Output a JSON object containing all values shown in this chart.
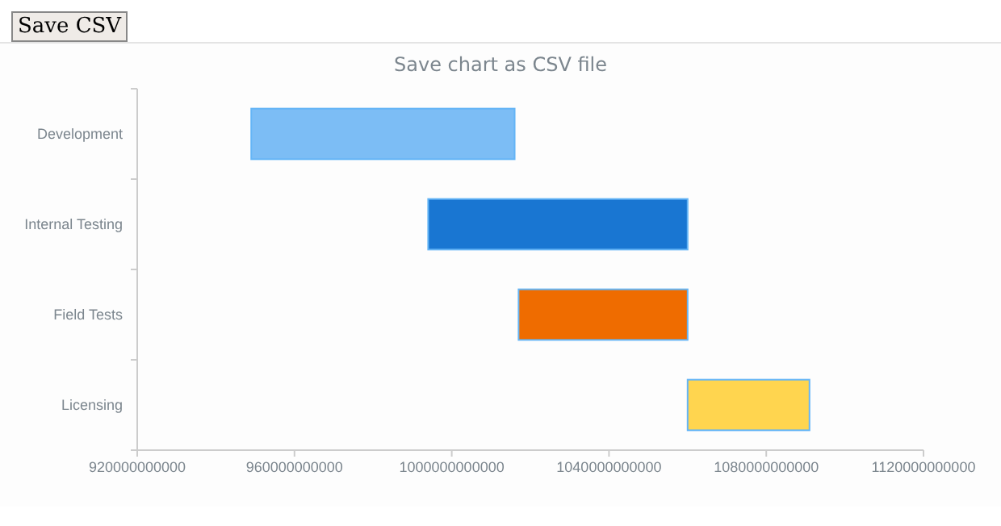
{
  "chart_data": {
    "type": "bar",
    "orientation": "horizontal",
    "title": "Save chart as CSV file",
    "annotations": [
      "Save CSV"
    ],
    "categories": [
      "Development",
      "Internal Testing",
      "Field Tests",
      "Licensing"
    ],
    "base": [
      949000000000,
      994000000000,
      1017000000000,
      1060000000000
    ],
    "values": [
      67000000000,
      66000000000,
      43000000000,
      31000000000
    ],
    "colors": [
      "#7cbdf5",
      "#1976d2",
      "#ef6c00",
      "#ffd54f"
    ],
    "xlim": [
      920000000000,
      1120000000000
    ],
    "xticks": [
      920000000000,
      960000000000,
      1000000000000,
      1040000000000,
      1080000000000,
      1120000000000
    ],
    "grid": false
  }
}
